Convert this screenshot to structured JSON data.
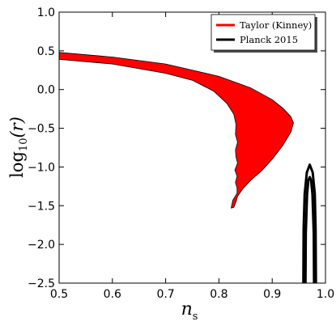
{
  "chart_data": {
    "type": "area",
    "xlabel": "n",
    "xlabel_sub": "s",
    "ylabel": "log",
    "ylabel_sub": "10",
    "ylabel_arg": "(r)",
    "xlim": [
      0.5,
      1.0
    ],
    "ylim": [
      -2.5,
      1.0
    ],
    "xticks": [
      0.5,
      0.6,
      0.7,
      0.8,
      0.9,
      1.0
    ],
    "xtick_labels": [
      "0.5",
      "0.6",
      "0.7",
      "0.8",
      "0.9",
      "1.0"
    ],
    "yticks": [
      1.0,
      0.5,
      0.0,
      -0.5,
      -1.0,
      -1.5,
      -2.0,
      -2.5
    ],
    "ytick_labels": [
      "1.0",
      "0.5",
      "0.0",
      "−0.5",
      "−1.0",
      "−1.5",
      "−2.0",
      "−2.5"
    ],
    "legend_position": "top-right",
    "series": [
      {
        "name": "Taylor (Kinney)",
        "color": "#ff0000",
        "kind": "filled_region",
        "outline": [
          [
            0.5,
            0.48
          ],
          [
            0.6,
            0.42
          ],
          [
            0.7,
            0.33
          ],
          [
            0.8,
            0.17
          ],
          [
            0.86,
            0.02
          ],
          [
            0.9,
            -0.13
          ],
          [
            0.92,
            -0.24
          ],
          [
            0.935,
            -0.35
          ],
          [
            0.94,
            -0.43
          ],
          [
            0.935,
            -0.55
          ],
          [
            0.92,
            -0.72
          ],
          [
            0.9,
            -0.9
          ],
          [
            0.88,
            -1.05
          ],
          [
            0.86,
            -1.17
          ],
          [
            0.845,
            -1.28
          ],
          [
            0.835,
            -1.38
          ],
          [
            0.832,
            -1.45
          ],
          [
            0.828,
            -1.52
          ],
          [
            0.823,
            -1.53
          ],
          [
            0.826,
            -1.43
          ],
          [
            0.834,
            -1.34
          ],
          [
            0.834,
            -1.27
          ],
          [
            0.831,
            -1.2
          ],
          [
            0.834,
            -1.12
          ],
          [
            0.83,
            -1.04
          ],
          [
            0.835,
            -0.95
          ],
          [
            0.832,
            -0.87
          ],
          [
            0.831,
            -0.78
          ],
          [
            0.835,
            -0.68
          ],
          [
            0.831,
            -0.58
          ],
          [
            0.832,
            -0.45
          ],
          [
            0.828,
            -0.32
          ],
          [
            0.815,
            -0.18
          ],
          [
            0.79,
            -0.02
          ],
          [
            0.75,
            0.12
          ],
          [
            0.7,
            0.21
          ],
          [
            0.6,
            0.33
          ],
          [
            0.5,
            0.39
          ]
        ]
      },
      {
        "name": "Planck 2015",
        "color": "#000000",
        "kind": "contours",
        "contours": [
          [
            [
              0.9585,
              -2.5
            ],
            [
              0.959,
              -1.8
            ],
            [
              0.961,
              -1.35
            ],
            [
              0.965,
              -1.07
            ],
            [
              0.9705,
              -0.97
            ],
            [
              0.976,
              -1.07
            ],
            [
              0.98,
              -1.35
            ],
            [
              0.9815,
              -1.8
            ],
            [
              0.982,
              -2.5
            ]
          ],
          [
            [
              0.9625,
              -2.5
            ],
            [
              0.963,
              -1.85
            ],
            [
              0.9655,
              -1.35
            ],
            [
              0.968,
              -1.17
            ],
            [
              0.9705,
              -1.13
            ],
            [
              0.973,
              -1.17
            ],
            [
              0.9755,
              -1.35
            ],
            [
              0.978,
              -1.85
            ],
            [
              0.9785,
              -2.5
            ]
          ]
        ]
      }
    ]
  }
}
